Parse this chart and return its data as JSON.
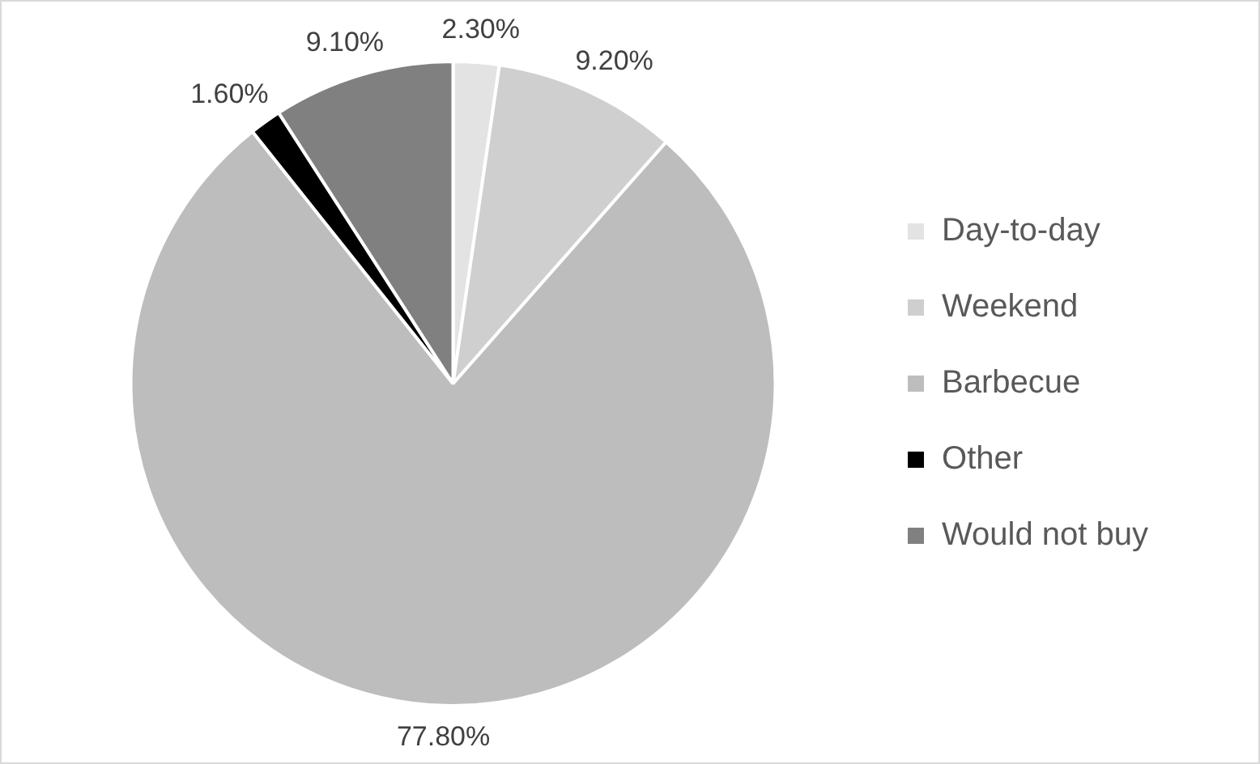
{
  "chart_data": {
    "type": "pie",
    "categories": [
      "Day-to-day",
      "Weekend",
      "Barbecue",
      "Other",
      "Would not buy"
    ],
    "values": [
      2.3,
      9.2,
      77.8,
      1.6,
      9.1
    ],
    "colors": [
      "#e3e3e3",
      "#cfcfcf",
      "#bdbdbd",
      "#000000",
      "#808080"
    ],
    "value_labels": [
      "2.30%",
      "9.20%",
      "77.80%",
      "1.60%",
      "9.10%"
    ],
    "legend": "right"
  }
}
